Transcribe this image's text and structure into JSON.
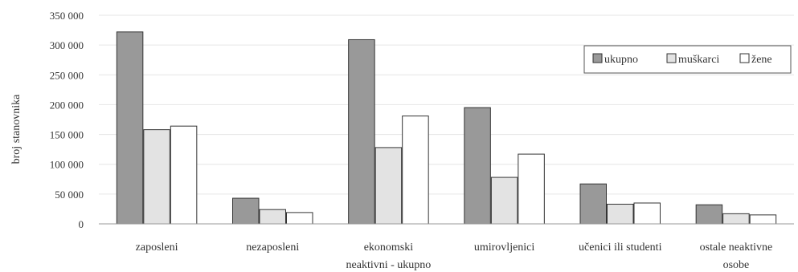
{
  "chart_data": {
    "type": "bar",
    "title": "",
    "ylabel": "broj stanovnika",
    "xlabel": "",
    "ylim": [
      0,
      350000
    ],
    "yticks": [
      0,
      50000,
      100000,
      150000,
      200000,
      250000,
      300000,
      350000
    ],
    "ytick_labels": [
      "0",
      "50 000",
      "100 000",
      "150 000",
      "200 000",
      "250 000",
      "300 000",
      "350 000"
    ],
    "grid": true,
    "legend_position": "top-right",
    "categories": [
      [
        "zaposleni"
      ],
      [
        "nezaposleni"
      ],
      [
        "ekonomski",
        "neaktivni - ukupno"
      ],
      [
        "umirovljenici"
      ],
      [
        "učenici ili studenti"
      ],
      [
        "ostale neaktivne",
        "osobe"
      ]
    ],
    "series": [
      {
        "name": "ukupno",
        "color": "#999999",
        "values": [
          322000,
          43000,
          309000,
          195000,
          67000,
          32000
        ]
      },
      {
        "name": "muškarci",
        "color": "#e3e3e3",
        "values": [
          158000,
          24000,
          128000,
          78000,
          33000,
          17000
        ]
      },
      {
        "name": "žene",
        "color": "#ffffff",
        "values": [
          164000,
          19000,
          181000,
          117000,
          35000,
          15000
        ]
      }
    ]
  }
}
